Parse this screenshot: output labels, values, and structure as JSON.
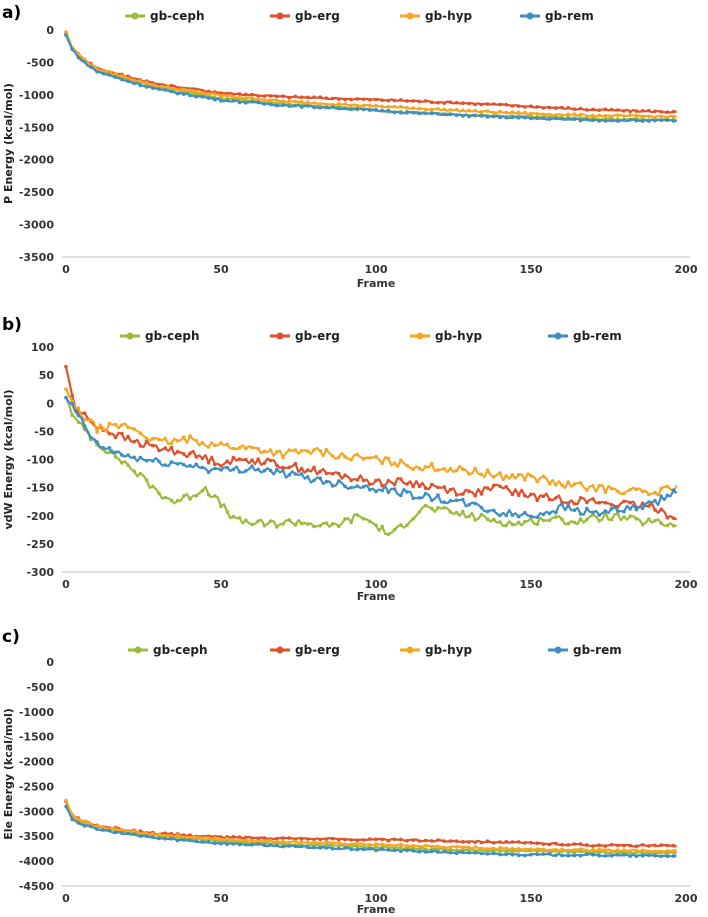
{
  "colors": {
    "gb-ceph": "#9BBB3B",
    "gb-erg": "#E0502A",
    "gb-hyp": "#F5A623",
    "gb-rem": "#3E8EC4"
  },
  "chart_data": [
    {
      "panel_label": "a)",
      "type": "line",
      "title": "",
      "xlabel": "Frame",
      "ylabel": "P Energy (kcal/mol)",
      "xlim": [
        0,
        200
      ],
      "ylim": [
        -3500,
        0
      ],
      "xticks": [
        0,
        50,
        100,
        150,
        200
      ],
      "yticks": [
        0,
        -500,
        -1000,
        -1500,
        -2000,
        -2500,
        -3000,
        -3500
      ],
      "legend": [
        "gb-ceph",
        "gb-erg",
        "gb-hyp",
        "gb-rem"
      ],
      "legend_position": "top",
      "series": [
        {
          "name": "gb-ceph",
          "x": [
            0,
            2,
            5,
            10,
            20,
            30,
            50,
            70,
            90,
            110,
            130,
            150,
            170,
            200
          ],
          "values": [
            -50,
            -300,
            -450,
            -620,
            -760,
            -880,
            -1050,
            -1140,
            -1200,
            -1270,
            -1310,
            -1340,
            -1370,
            -1390
          ]
        },
        {
          "name": "gb-erg",
          "x": [
            0,
            2,
            5,
            10,
            20,
            30,
            50,
            70,
            90,
            110,
            130,
            150,
            170,
            200
          ],
          "values": [
            -50,
            -280,
            -420,
            -590,
            -720,
            -840,
            -970,
            -1030,
            -1060,
            -1090,
            -1130,
            -1180,
            -1230,
            -1270
          ]
        },
        {
          "name": "gb-hyp",
          "x": [
            0,
            2,
            5,
            10,
            20,
            30,
            50,
            70,
            90,
            110,
            130,
            150,
            170,
            200
          ],
          "values": [
            -30,
            -270,
            -420,
            -600,
            -740,
            -870,
            -1010,
            -1100,
            -1150,
            -1200,
            -1250,
            -1290,
            -1320,
            -1340
          ]
        },
        {
          "name": "gb-rem",
          "x": [
            0,
            2,
            5,
            10,
            20,
            30,
            50,
            70,
            90,
            110,
            130,
            150,
            170,
            200
          ],
          "values": [
            -80,
            -300,
            -470,
            -640,
            -790,
            -920,
            -1080,
            -1160,
            -1210,
            -1270,
            -1320,
            -1360,
            -1390,
            -1400
          ]
        }
      ]
    },
    {
      "panel_label": "b)",
      "type": "line",
      "title": "",
      "xlabel": "Frame",
      "ylabel": "vdW Energy (kcal/mol)",
      "xlim": [
        0,
        200
      ],
      "ylim": [
        -300,
        100
      ],
      "xticks": [
        0,
        50,
        100,
        150,
        200
      ],
      "yticks": [
        100,
        50,
        0,
        -50,
        -100,
        -150,
        -200,
        -250,
        -300
      ],
      "legend": [
        "gb-ceph",
        "gb-erg",
        "gb-hyp",
        "gb-rem"
      ],
      "legend_position": "top",
      "series": [
        {
          "name": "gb-ceph",
          "x": [
            0,
            3,
            10,
            20,
            30,
            35,
            40,
            45,
            55,
            65,
            75,
            85,
            95,
            105,
            115,
            125,
            135,
            145,
            155,
            165,
            175,
            185,
            195
          ],
          "values": [
            10,
            -30,
            -70,
            -110,
            -160,
            -175,
            -165,
            -150,
            -210,
            -215,
            -210,
            -220,
            -200,
            -235,
            -185,
            -195,
            -205,
            -215,
            -205,
            -210,
            -200,
            -210,
            -215
          ]
        },
        {
          "name": "gb-erg",
          "x": [
            0,
            3,
            10,
            20,
            30,
            40,
            50,
            60,
            70,
            80,
            90,
            100,
            110,
            120,
            130,
            140,
            150,
            160,
            170,
            180,
            190,
            195
          ],
          "values": [
            65,
            -10,
            -40,
            -65,
            -80,
            -90,
            -105,
            -100,
            -110,
            -120,
            -130,
            -140,
            -140,
            -150,
            -160,
            -150,
            -165,
            -170,
            -175,
            -180,
            -185,
            -200
          ]
        },
        {
          "name": "gb-hyp",
          "x": [
            0,
            3,
            10,
            20,
            30,
            40,
            50,
            60,
            70,
            80,
            90,
            100,
            110,
            120,
            130,
            140,
            150,
            160,
            170,
            180,
            190,
            195
          ],
          "values": [
            25,
            -10,
            -45,
            -40,
            -70,
            -65,
            -75,
            -80,
            -90,
            -85,
            -95,
            -100,
            -110,
            -115,
            -120,
            -130,
            -130,
            -145,
            -150,
            -155,
            -160,
            -150
          ]
        },
        {
          "name": "gb-rem",
          "x": [
            0,
            3,
            10,
            20,
            30,
            40,
            50,
            60,
            70,
            80,
            90,
            100,
            110,
            120,
            130,
            140,
            150,
            160,
            170,
            180,
            190,
            195
          ],
          "values": [
            10,
            -15,
            -75,
            -95,
            -105,
            -110,
            -120,
            -115,
            -125,
            -135,
            -145,
            -150,
            -160,
            -170,
            -180,
            -195,
            -200,
            -185,
            -195,
            -190,
            -180,
            -160
          ]
        }
      ]
    },
    {
      "panel_label": "c)",
      "type": "line",
      "title": "",
      "xlabel": "Frame",
      "ylabel": "Ele Energy (kcal/mol)",
      "xlim": [
        0,
        200
      ],
      "ylim": [
        -4500,
        0
      ],
      "xticks": [
        0,
        50,
        100,
        150,
        200
      ],
      "yticks": [
        0,
        -500,
        -1000,
        -1500,
        -2000,
        -2500,
        -3000,
        -3500,
        -4000,
        -4500
      ],
      "legend": [
        "gb-ceph",
        "gb-erg",
        "gb-hyp",
        "gb-rem"
      ],
      "legend_position": "top",
      "series": [
        {
          "name": "gb-ceph",
          "x": [
            0,
            2,
            5,
            10,
            20,
            30,
            50,
            70,
            90,
            110,
            130,
            150,
            170,
            200
          ],
          "values": [
            -2800,
            -3100,
            -3220,
            -3320,
            -3420,
            -3500,
            -3600,
            -3660,
            -3700,
            -3740,
            -3780,
            -3800,
            -3820,
            -3840
          ]
        },
        {
          "name": "gb-erg",
          "x": [
            0,
            2,
            5,
            10,
            20,
            30,
            50,
            70,
            90,
            110,
            130,
            150,
            170,
            200
          ],
          "values": [
            -2800,
            -3080,
            -3180,
            -3290,
            -3380,
            -3450,
            -3520,
            -3540,
            -3560,
            -3580,
            -3600,
            -3640,
            -3680,
            -3700
          ]
        },
        {
          "name": "gb-hyp",
          "x": [
            0,
            2,
            5,
            10,
            20,
            30,
            50,
            70,
            90,
            110,
            130,
            150,
            170,
            200
          ],
          "values": [
            -2780,
            -3080,
            -3200,
            -3300,
            -3400,
            -3470,
            -3560,
            -3610,
            -3650,
            -3690,
            -3730,
            -3760,
            -3780,
            -3800
          ]
        },
        {
          "name": "gb-rem",
          "x": [
            0,
            2,
            5,
            10,
            20,
            30,
            50,
            70,
            90,
            110,
            130,
            150,
            170,
            200
          ],
          "values": [
            -2900,
            -3150,
            -3260,
            -3360,
            -3460,
            -3540,
            -3640,
            -3700,
            -3750,
            -3790,
            -3840,
            -3870,
            -3880,
            -3900
          ]
        }
      ]
    }
  ]
}
